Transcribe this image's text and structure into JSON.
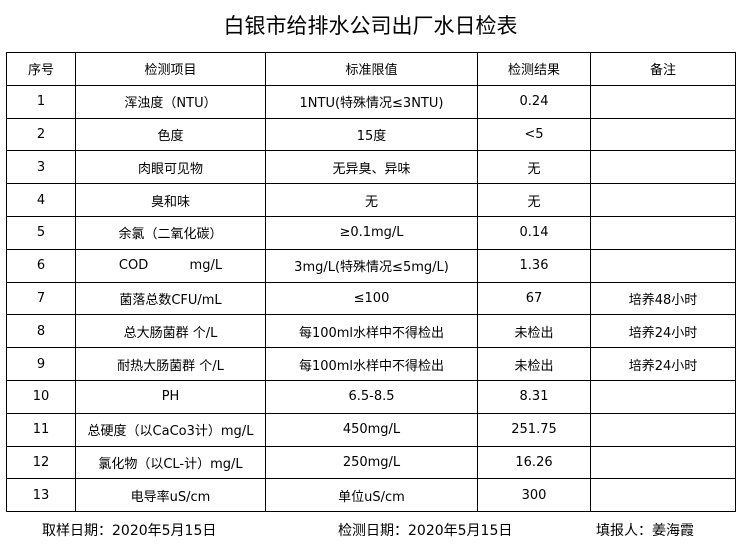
{
  "header": {
    "title": "白银市给排水公司出厂水日检表"
  },
  "table": {
    "columns": [
      "序号",
      "检测项目",
      "标准限值",
      "检测结果",
      "备注"
    ],
    "rows": [
      [
        "1",
        "浑浊度（NTU）",
        "1NTU(特殊情况≤3NTU)",
        "0.24",
        ""
      ],
      [
        "2",
        "色度",
        "15度",
        "<5",
        ""
      ],
      [
        "3",
        "肉眼可见物",
        "无异臭、异味",
        "无",
        ""
      ],
      [
        "4",
        "臭和味",
        "无",
        "无",
        ""
      ],
      [
        "5",
        "余氯（二氧化碳）",
        "≥0.1mg/L",
        "0.14",
        ""
      ],
      [
        "6",
        "COD          mg/L",
        "3mg/L(特殊情况≤5mg/L)",
        "1.36",
        ""
      ],
      [
        "7",
        "菌落总数CFU/mL",
        "≤100",
        "67",
        "培养48小时"
      ],
      [
        "8",
        "总大肠菌群 个/L",
        "每100ml水样中不得检出",
        "未检出",
        "培养24小时"
      ],
      [
        "9",
        "耐热大肠菌群 个/L",
        "每100ml水样中不得检出",
        "未检出",
        "培养24小时"
      ],
      [
        "10",
        "PH",
        "6.5-8.5",
        "8.31",
        ""
      ],
      [
        "11",
        "总硬度（以CaCo3计）mg/L",
        "450mg/L",
        "251.75",
        ""
      ],
      [
        "12",
        "氯化物（以CL-计）mg/L",
        "250mg/L",
        "16.26",
        ""
      ],
      [
        "13",
        "电导率uS/cm",
        "单位uS/cm",
        "300",
        ""
      ]
    ]
  },
  "footer": {
    "sample_date": "取样日期：2020年5月15日",
    "test_date": "检测日期：2020年5月15日",
    "reporter": "填报人：姜海霞"
  }
}
